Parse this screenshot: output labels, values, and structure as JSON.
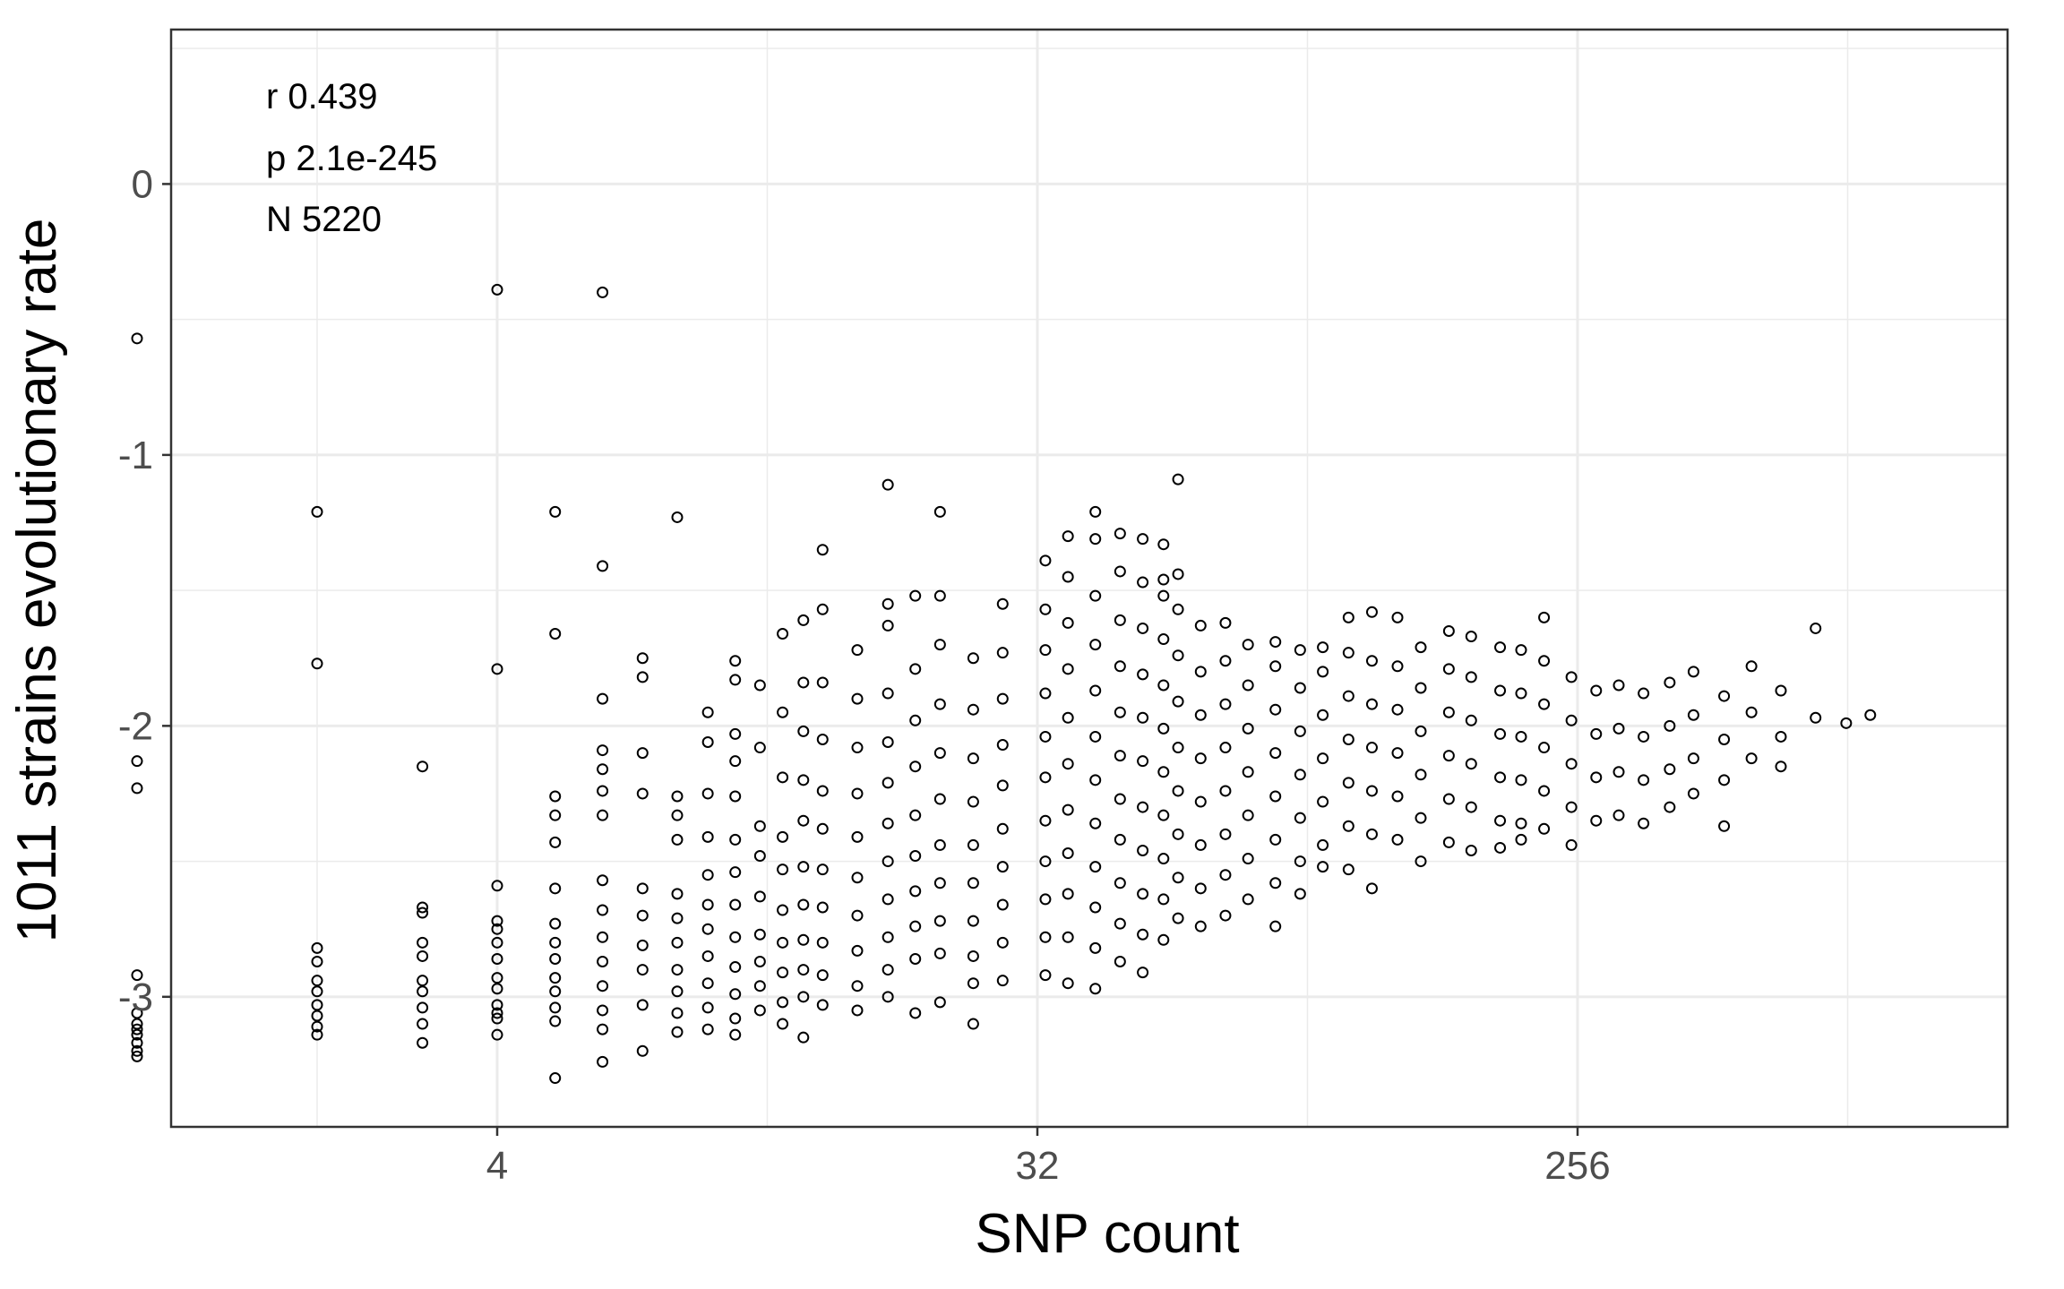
{
  "chart_data": {
    "type": "scatter",
    "title": "",
    "xlabel": "SNP count",
    "ylabel": "1011 strains evolutionary rate",
    "x_scale": "log2",
    "xlim": [
      1.14,
      1340
    ],
    "ylim": [
      -3.48,
      0.57
    ],
    "x_ticks": [
      4,
      32,
      256
    ],
    "x_tick_labels": [
      "4",
      "32",
      "256"
    ],
    "y_ticks": [
      0,
      -1,
      -2,
      -3
    ],
    "y_tick_labels": [
      "0",
      "-1",
      "-2",
      "-3"
    ],
    "grid": true,
    "legend": "none",
    "annotations": [
      "r 0.439",
      "p 2.1e-245",
      "N 5220"
    ],
    "n_points": 5220,
    "colors": {
      "point_stroke": "#000000",
      "grid": "#ebebeb",
      "panel_border": "#333333",
      "tick_text": "#4d4d4d"
    },
    "points": [
      [
        1,
        -0.57
      ],
      [
        1,
        -2.13
      ],
      [
        1,
        -2.23
      ],
      [
        1,
        -2.92
      ],
      [
        1,
        -3.06
      ],
      [
        1,
        -3.1
      ],
      [
        1,
        -3.12
      ],
      [
        1,
        -3.14
      ],
      [
        1,
        -3.17
      ],
      [
        1,
        -3.2
      ],
      [
        1,
        -3.22
      ],
      [
        2,
        -1.21
      ],
      [
        2,
        -1.77
      ],
      [
        2,
        -2.82
      ],
      [
        2,
        -2.87
      ],
      [
        2,
        -2.94
      ],
      [
        2,
        -2.98
      ],
      [
        2,
        -3.03
      ],
      [
        2,
        -3.07
      ],
      [
        2,
        -3.11
      ],
      [
        2,
        -3.14
      ],
      [
        3,
        -2.15
      ],
      [
        3,
        -2.67
      ],
      [
        3,
        -2.69
      ],
      [
        3,
        -2.8
      ],
      [
        3,
        -2.85
      ],
      [
        3,
        -2.94
      ],
      [
        3,
        -2.98
      ],
      [
        3,
        -3.04
      ],
      [
        3,
        -3.1
      ],
      [
        3,
        -3.17
      ],
      [
        4,
        -0.39
      ],
      [
        4,
        -1.79
      ],
      [
        4,
        -2.59
      ],
      [
        4,
        -2.72
      ],
      [
        4,
        -2.75
      ],
      [
        4,
        -2.8
      ],
      [
        4,
        -2.86
      ],
      [
        4,
        -2.93
      ],
      [
        4,
        -2.97
      ],
      [
        4,
        -3.03
      ],
      [
        4,
        -3.06
      ],
      [
        4,
        -3.08
      ],
      [
        4,
        -3.14
      ],
      [
        5,
        -1.21
      ],
      [
        5,
        -1.66
      ],
      [
        5,
        -2.26
      ],
      [
        5,
        -2.33
      ],
      [
        5,
        -2.43
      ],
      [
        5,
        -2.6
      ],
      [
        5,
        -2.73
      ],
      [
        5,
        -2.8
      ],
      [
        5,
        -2.86
      ],
      [
        5,
        -2.93
      ],
      [
        5,
        -2.98
      ],
      [
        5,
        -3.04
      ],
      [
        5,
        -3.09
      ],
      [
        5,
        -3.3
      ],
      [
        6,
        -0.4
      ],
      [
        6,
        -1.41
      ],
      [
        6,
        -1.9
      ],
      [
        6,
        -2.09
      ],
      [
        6,
        -2.16
      ],
      [
        6,
        -2.24
      ],
      [
        6,
        -2.33
      ],
      [
        6,
        -2.57
      ],
      [
        6,
        -2.68
      ],
      [
        6,
        -2.78
      ],
      [
        6,
        -2.87
      ],
      [
        6,
        -2.96
      ],
      [
        6,
        -3.05
      ],
      [
        6,
        -3.12
      ],
      [
        6,
        -3.24
      ],
      [
        7,
        -1.75
      ],
      [
        7,
        -1.82
      ],
      [
        7,
        -2.1
      ],
      [
        7,
        -2.25
      ],
      [
        7,
        -2.6
      ],
      [
        7,
        -2.7
      ],
      [
        7,
        -2.81
      ],
      [
        7,
        -2.9
      ],
      [
        7,
        -3.03
      ],
      [
        7,
        -3.2
      ],
      [
        8,
        -1.23
      ],
      [
        8,
        -2.26
      ],
      [
        8,
        -2.33
      ],
      [
        8,
        -2.42
      ],
      [
        8,
        -2.62
      ],
      [
        8,
        -2.71
      ],
      [
        8,
        -2.8
      ],
      [
        8,
        -2.9
      ],
      [
        8,
        -2.98
      ],
      [
        8,
        -3.06
      ],
      [
        8,
        -3.13
      ],
      [
        9,
        -1.95
      ],
      [
        9,
        -2.06
      ],
      [
        9,
        -2.25
      ],
      [
        9,
        -2.41
      ],
      [
        9,
        -2.55
      ],
      [
        9,
        -2.66
      ],
      [
        9,
        -2.75
      ],
      [
        9,
        -2.85
      ],
      [
        9,
        -2.95
      ],
      [
        9,
        -3.04
      ],
      [
        9,
        -3.12
      ],
      [
        10,
        -1.76
      ],
      [
        10,
        -1.83
      ],
      [
        10,
        -2.03
      ],
      [
        10,
        -2.13
      ],
      [
        10,
        -2.26
      ],
      [
        10,
        -2.42
      ],
      [
        10,
        -2.54
      ],
      [
        10,
        -2.66
      ],
      [
        10,
        -2.78
      ],
      [
        10,
        -2.89
      ],
      [
        10,
        -2.99
      ],
      [
        10,
        -3.08
      ],
      [
        10,
        -3.14
      ],
      [
        11,
        -1.85
      ],
      [
        11,
        -2.08
      ],
      [
        11,
        -2.37
      ],
      [
        11,
        -2.48
      ],
      [
        11,
        -2.63
      ],
      [
        11,
        -2.77
      ],
      [
        11,
        -2.87
      ],
      [
        11,
        -2.96
      ],
      [
        11,
        -3.05
      ],
      [
        12,
        -1.66
      ],
      [
        12,
        -1.95
      ],
      [
        12,
        -2.19
      ],
      [
        12,
        -2.41
      ],
      [
        12,
        -2.53
      ],
      [
        12,
        -2.68
      ],
      [
        12,
        -2.8
      ],
      [
        12,
        -2.91
      ],
      [
        12,
        -3.02
      ],
      [
        12,
        -3.1
      ],
      [
        13,
        -1.61
      ],
      [
        13,
        -1.84
      ],
      [
        13,
        -2.02
      ],
      [
        13,
        -2.2
      ],
      [
        13,
        -2.35
      ],
      [
        13,
        -2.52
      ],
      [
        13,
        -2.66
      ],
      [
        13,
        -2.79
      ],
      [
        13,
        -2.9
      ],
      [
        13,
        -3.0
      ],
      [
        13,
        -3.15
      ],
      [
        14,
        -1.35
      ],
      [
        14,
        -1.57
      ],
      [
        14,
        -1.84
      ],
      [
        14,
        -2.05
      ],
      [
        14,
        -2.24
      ],
      [
        14,
        -2.38
      ],
      [
        14,
        -2.53
      ],
      [
        14,
        -2.67
      ],
      [
        14,
        -2.8
      ],
      [
        14,
        -2.92
      ],
      [
        14,
        -3.03
      ],
      [
        16,
        -1.72
      ],
      [
        16,
        -1.9
      ],
      [
        16,
        -2.08
      ],
      [
        16,
        -2.25
      ],
      [
        16,
        -2.41
      ],
      [
        16,
        -2.56
      ],
      [
        16,
        -2.7
      ],
      [
        16,
        -2.83
      ],
      [
        16,
        -2.96
      ],
      [
        16,
        -3.05
      ],
      [
        18,
        -1.11
      ],
      [
        18,
        -1.55
      ],
      [
        18,
        -1.63
      ],
      [
        18,
        -1.88
      ],
      [
        18,
        -2.06
      ],
      [
        18,
        -2.21
      ],
      [
        18,
        -2.36
      ],
      [
        18,
        -2.5
      ],
      [
        18,
        -2.64
      ],
      [
        18,
        -2.78
      ],
      [
        18,
        -2.9
      ],
      [
        18,
        -3.0
      ],
      [
        20,
        -1.52
      ],
      [
        20,
        -1.79
      ],
      [
        20,
        -1.98
      ],
      [
        20,
        -2.15
      ],
      [
        20,
        -2.33
      ],
      [
        20,
        -2.48
      ],
      [
        20,
        -2.61
      ],
      [
        20,
        -2.74
      ],
      [
        20,
        -2.86
      ],
      [
        20,
        -3.06
      ],
      [
        22,
        -1.21
      ],
      [
        22,
        -1.52
      ],
      [
        22,
        -1.7
      ],
      [
        22,
        -1.92
      ],
      [
        22,
        -2.1
      ],
      [
        22,
        -2.27
      ],
      [
        22,
        -2.44
      ],
      [
        22,
        -2.58
      ],
      [
        22,
        -2.72
      ],
      [
        22,
        -2.84
      ],
      [
        22,
        -3.02
      ],
      [
        25,
        -1.75
      ],
      [
        25,
        -1.94
      ],
      [
        25,
        -2.12
      ],
      [
        25,
        -2.28
      ],
      [
        25,
        -2.44
      ],
      [
        25,
        -2.58
      ],
      [
        25,
        -2.72
      ],
      [
        25,
        -2.85
      ],
      [
        25,
        -2.95
      ],
      [
        25,
        -3.1
      ],
      [
        28,
        -1.55
      ],
      [
        28,
        -1.73
      ],
      [
        28,
        -1.9
      ],
      [
        28,
        -2.07
      ],
      [
        28,
        -2.22
      ],
      [
        28,
        -2.38
      ],
      [
        28,
        -2.52
      ],
      [
        28,
        -2.66
      ],
      [
        28,
        -2.8
      ],
      [
        28,
        -2.94
      ],
      [
        33,
        -1.39
      ],
      [
        33,
        -1.57
      ],
      [
        33,
        -1.72
      ],
      [
        33,
        -1.88
      ],
      [
        33,
        -2.04
      ],
      [
        33,
        -2.19
      ],
      [
        33,
        -2.35
      ],
      [
        33,
        -2.5
      ],
      [
        33,
        -2.64
      ],
      [
        33,
        -2.78
      ],
      [
        33,
        -2.92
      ],
      [
        36,
        -1.3
      ],
      [
        36,
        -1.45
      ],
      [
        36,
        -1.62
      ],
      [
        36,
        -1.79
      ],
      [
        36,
        -1.97
      ],
      [
        36,
        -2.14
      ],
      [
        36,
        -2.31
      ],
      [
        36,
        -2.47
      ],
      [
        36,
        -2.62
      ],
      [
        36,
        -2.78
      ],
      [
        36,
        -2.95
      ],
      [
        40,
        -1.21
      ],
      [
        40,
        -1.31
      ],
      [
        40,
        -1.52
      ],
      [
        40,
        -1.7
      ],
      [
        40,
        -1.87
      ],
      [
        40,
        -2.04
      ],
      [
        40,
        -2.2
      ],
      [
        40,
        -2.36
      ],
      [
        40,
        -2.52
      ],
      [
        40,
        -2.67
      ],
      [
        40,
        -2.82
      ],
      [
        40,
        -2.97
      ],
      [
        44,
        -1.29
      ],
      [
        44,
        -1.43
      ],
      [
        44,
        -1.61
      ],
      [
        44,
        -1.78
      ],
      [
        44,
        -1.95
      ],
      [
        44,
        -2.11
      ],
      [
        44,
        -2.27
      ],
      [
        44,
        -2.42
      ],
      [
        44,
        -2.58
      ],
      [
        44,
        -2.73
      ],
      [
        44,
        -2.87
      ],
      [
        48,
        -1.31
      ],
      [
        48,
        -1.47
      ],
      [
        48,
        -1.64
      ],
      [
        48,
        -1.81
      ],
      [
        48,
        -1.97
      ],
      [
        48,
        -2.13
      ],
      [
        48,
        -2.3
      ],
      [
        48,
        -2.46
      ],
      [
        48,
        -2.62
      ],
      [
        48,
        -2.77
      ],
      [
        48,
        -2.91
      ],
      [
        52,
        -1.33
      ],
      [
        52,
        -1.46
      ],
      [
        52,
        -1.52
      ],
      [
        52,
        -1.68
      ],
      [
        52,
        -1.85
      ],
      [
        52,
        -2.01
      ],
      [
        52,
        -2.17
      ],
      [
        52,
        -2.33
      ],
      [
        52,
        -2.49
      ],
      [
        52,
        -2.64
      ],
      [
        52,
        -2.79
      ],
      [
        55,
        -1.09
      ],
      [
        55,
        -1.44
      ],
      [
        55,
        -1.57
      ],
      [
        55,
        -1.74
      ],
      [
        55,
        -1.91
      ],
      [
        55,
        -2.08
      ],
      [
        55,
        -2.24
      ],
      [
        55,
        -2.4
      ],
      [
        55,
        -2.56
      ],
      [
        55,
        -2.71
      ],
      [
        60,
        -1.63
      ],
      [
        60,
        -1.8
      ],
      [
        60,
        -1.96
      ],
      [
        60,
        -2.12
      ],
      [
        60,
        -2.28
      ],
      [
        60,
        -2.44
      ],
      [
        60,
        -2.6
      ],
      [
        60,
        -2.74
      ],
      [
        66,
        -1.62
      ],
      [
        66,
        -1.76
      ],
      [
        66,
        -1.92
      ],
      [
        66,
        -2.08
      ],
      [
        66,
        -2.24
      ],
      [
        66,
        -2.4
      ],
      [
        66,
        -2.55
      ],
      [
        66,
        -2.7
      ],
      [
        72,
        -1.7
      ],
      [
        72,
        -1.85
      ],
      [
        72,
        -2.01
      ],
      [
        72,
        -2.17
      ],
      [
        72,
        -2.33
      ],
      [
        72,
        -2.49
      ],
      [
        72,
        -2.64
      ],
      [
        80,
        -1.69
      ],
      [
        80,
        -1.78
      ],
      [
        80,
        -1.94
      ],
      [
        80,
        -2.1
      ],
      [
        80,
        -2.26
      ],
      [
        80,
        -2.42
      ],
      [
        80,
        -2.58
      ],
      [
        80,
        -2.74
      ],
      [
        88,
        -1.72
      ],
      [
        88,
        -1.86
      ],
      [
        88,
        -2.02
      ],
      [
        88,
        -2.18
      ],
      [
        88,
        -2.34
      ],
      [
        88,
        -2.5
      ],
      [
        88,
        -2.62
      ],
      [
        96,
        -1.71
      ],
      [
        96,
        -1.8
      ],
      [
        96,
        -1.96
      ],
      [
        96,
        -2.12
      ],
      [
        96,
        -2.28
      ],
      [
        96,
        -2.44
      ],
      [
        96,
        -2.52
      ],
      [
        106,
        -1.6
      ],
      [
        106,
        -1.73
      ],
      [
        106,
        -1.89
      ],
      [
        106,
        -2.05
      ],
      [
        106,
        -2.21
      ],
      [
        106,
        -2.37
      ],
      [
        106,
        -2.53
      ],
      [
        116,
        -1.58
      ],
      [
        116,
        -1.76
      ],
      [
        116,
        -1.92
      ],
      [
        116,
        -2.08
      ],
      [
        116,
        -2.24
      ],
      [
        116,
        -2.4
      ],
      [
        116,
        -2.6
      ],
      [
        128,
        -1.6
      ],
      [
        128,
        -1.78
      ],
      [
        128,
        -1.94
      ],
      [
        128,
        -2.1
      ],
      [
        128,
        -2.26
      ],
      [
        128,
        -2.42
      ],
      [
        140,
        -1.71
      ],
      [
        140,
        -1.86
      ],
      [
        140,
        -2.02
      ],
      [
        140,
        -2.18
      ],
      [
        140,
        -2.34
      ],
      [
        140,
        -2.5
      ],
      [
        156,
        -1.65
      ],
      [
        156,
        -1.79
      ],
      [
        156,
        -1.95
      ],
      [
        156,
        -2.11
      ],
      [
        156,
        -2.27
      ],
      [
        156,
        -2.43
      ],
      [
        170,
        -1.67
      ],
      [
        170,
        -1.82
      ],
      [
        170,
        -1.98
      ],
      [
        170,
        -2.14
      ],
      [
        170,
        -2.3
      ],
      [
        170,
        -2.46
      ],
      [
        190,
        -1.71
      ],
      [
        190,
        -1.87
      ],
      [
        190,
        -2.03
      ],
      [
        190,
        -2.19
      ],
      [
        190,
        -2.35
      ],
      [
        190,
        -2.45
      ],
      [
        206,
        -1.72
      ],
      [
        206,
        -1.88
      ],
      [
        206,
        -2.04
      ],
      [
        206,
        -2.2
      ],
      [
        206,
        -2.36
      ],
      [
        206,
        -2.42
      ],
      [
        225,
        -1.6
      ],
      [
        225,
        -1.76
      ],
      [
        225,
        -1.92
      ],
      [
        225,
        -2.08
      ],
      [
        225,
        -2.24
      ],
      [
        225,
        -2.38
      ],
      [
        250,
        -1.82
      ],
      [
        250,
        -1.98
      ],
      [
        250,
        -2.14
      ],
      [
        250,
        -2.3
      ],
      [
        250,
        -2.44
      ],
      [
        275,
        -1.87
      ],
      [
        275,
        -2.03
      ],
      [
        275,
        -2.19
      ],
      [
        275,
        -2.35
      ],
      [
        300,
        -1.85
      ],
      [
        300,
        -2.01
      ],
      [
        300,
        -2.17
      ],
      [
        300,
        -2.33
      ],
      [
        330,
        -1.88
      ],
      [
        330,
        -2.04
      ],
      [
        330,
        -2.2
      ],
      [
        330,
        -2.36
      ],
      [
        365,
        -1.84
      ],
      [
        365,
        -2.0
      ],
      [
        365,
        -2.16
      ],
      [
        365,
        -2.3
      ],
      [
        400,
        -1.8
      ],
      [
        400,
        -1.96
      ],
      [
        400,
        -2.12
      ],
      [
        400,
        -2.25
      ],
      [
        450,
        -1.89
      ],
      [
        450,
        -2.05
      ],
      [
        450,
        -2.2
      ],
      [
        450,
        -2.37
      ],
      [
        500,
        -1.78
      ],
      [
        500,
        -1.95
      ],
      [
        500,
        -2.12
      ],
      [
        560,
        -1.87
      ],
      [
        560,
        -2.04
      ],
      [
        560,
        -2.15
      ],
      [
        640,
        -1.64
      ],
      [
        640,
        -1.97
      ],
      [
        720,
        -1.99
      ],
      [
        790,
        -1.96
      ]
    ]
  }
}
